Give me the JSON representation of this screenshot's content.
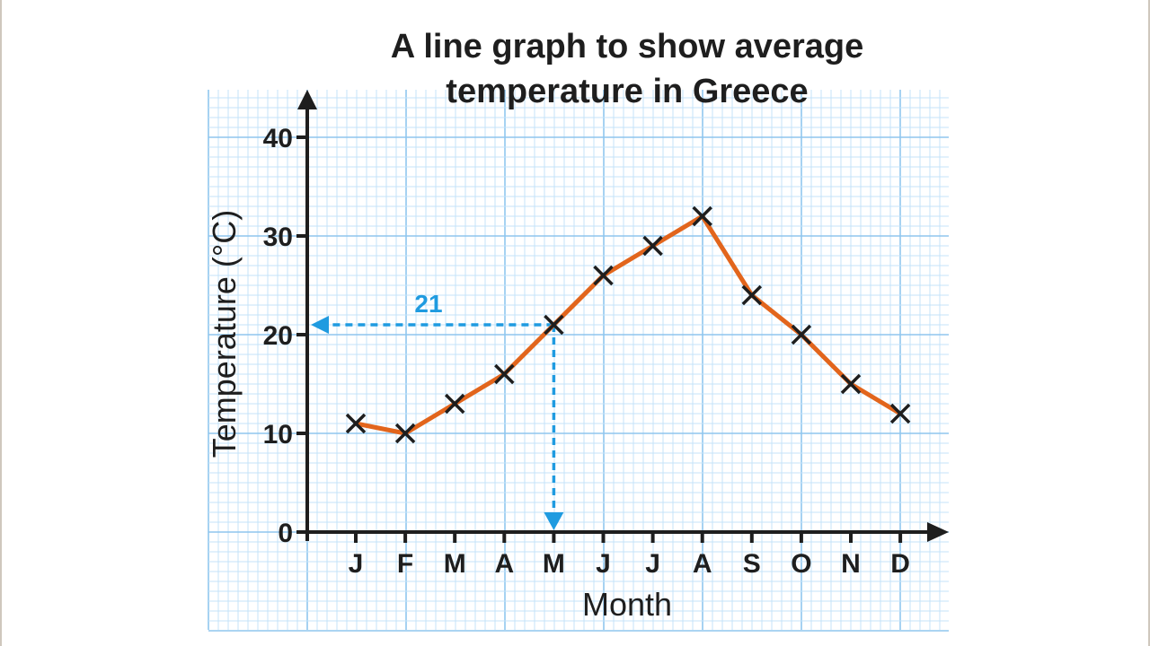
{
  "chart_data": {
    "type": "line",
    "title_lines": [
      "A line graph to show average",
      "temperature in Greece"
    ],
    "xlabel": "Month",
    "ylabel": "Temperature (°C)",
    "categories": [
      "J",
      "F",
      "M",
      "A",
      "M",
      "J",
      "J",
      "A",
      "S",
      "O",
      "N",
      "D"
    ],
    "series": [
      {
        "values": [
          11,
          10,
          13,
          16,
          21,
          26,
          29,
          32,
          24,
          20,
          15,
          12
        ]
      }
    ],
    "ylim": [
      0,
      40
    ],
    "yticks": [
      0,
      10,
      20,
      30,
      40
    ],
    "grid": true,
    "annotation": {
      "label": "21",
      "category_index": 4,
      "value": 21
    },
    "colors": {
      "line": "#e2651c",
      "marker": "#1e1e1e",
      "grid_major": "#8fc6ee",
      "grid_minor": "#c4e3f8",
      "axis": "#1e1e1e",
      "annotation": "#1f9be0"
    }
  }
}
